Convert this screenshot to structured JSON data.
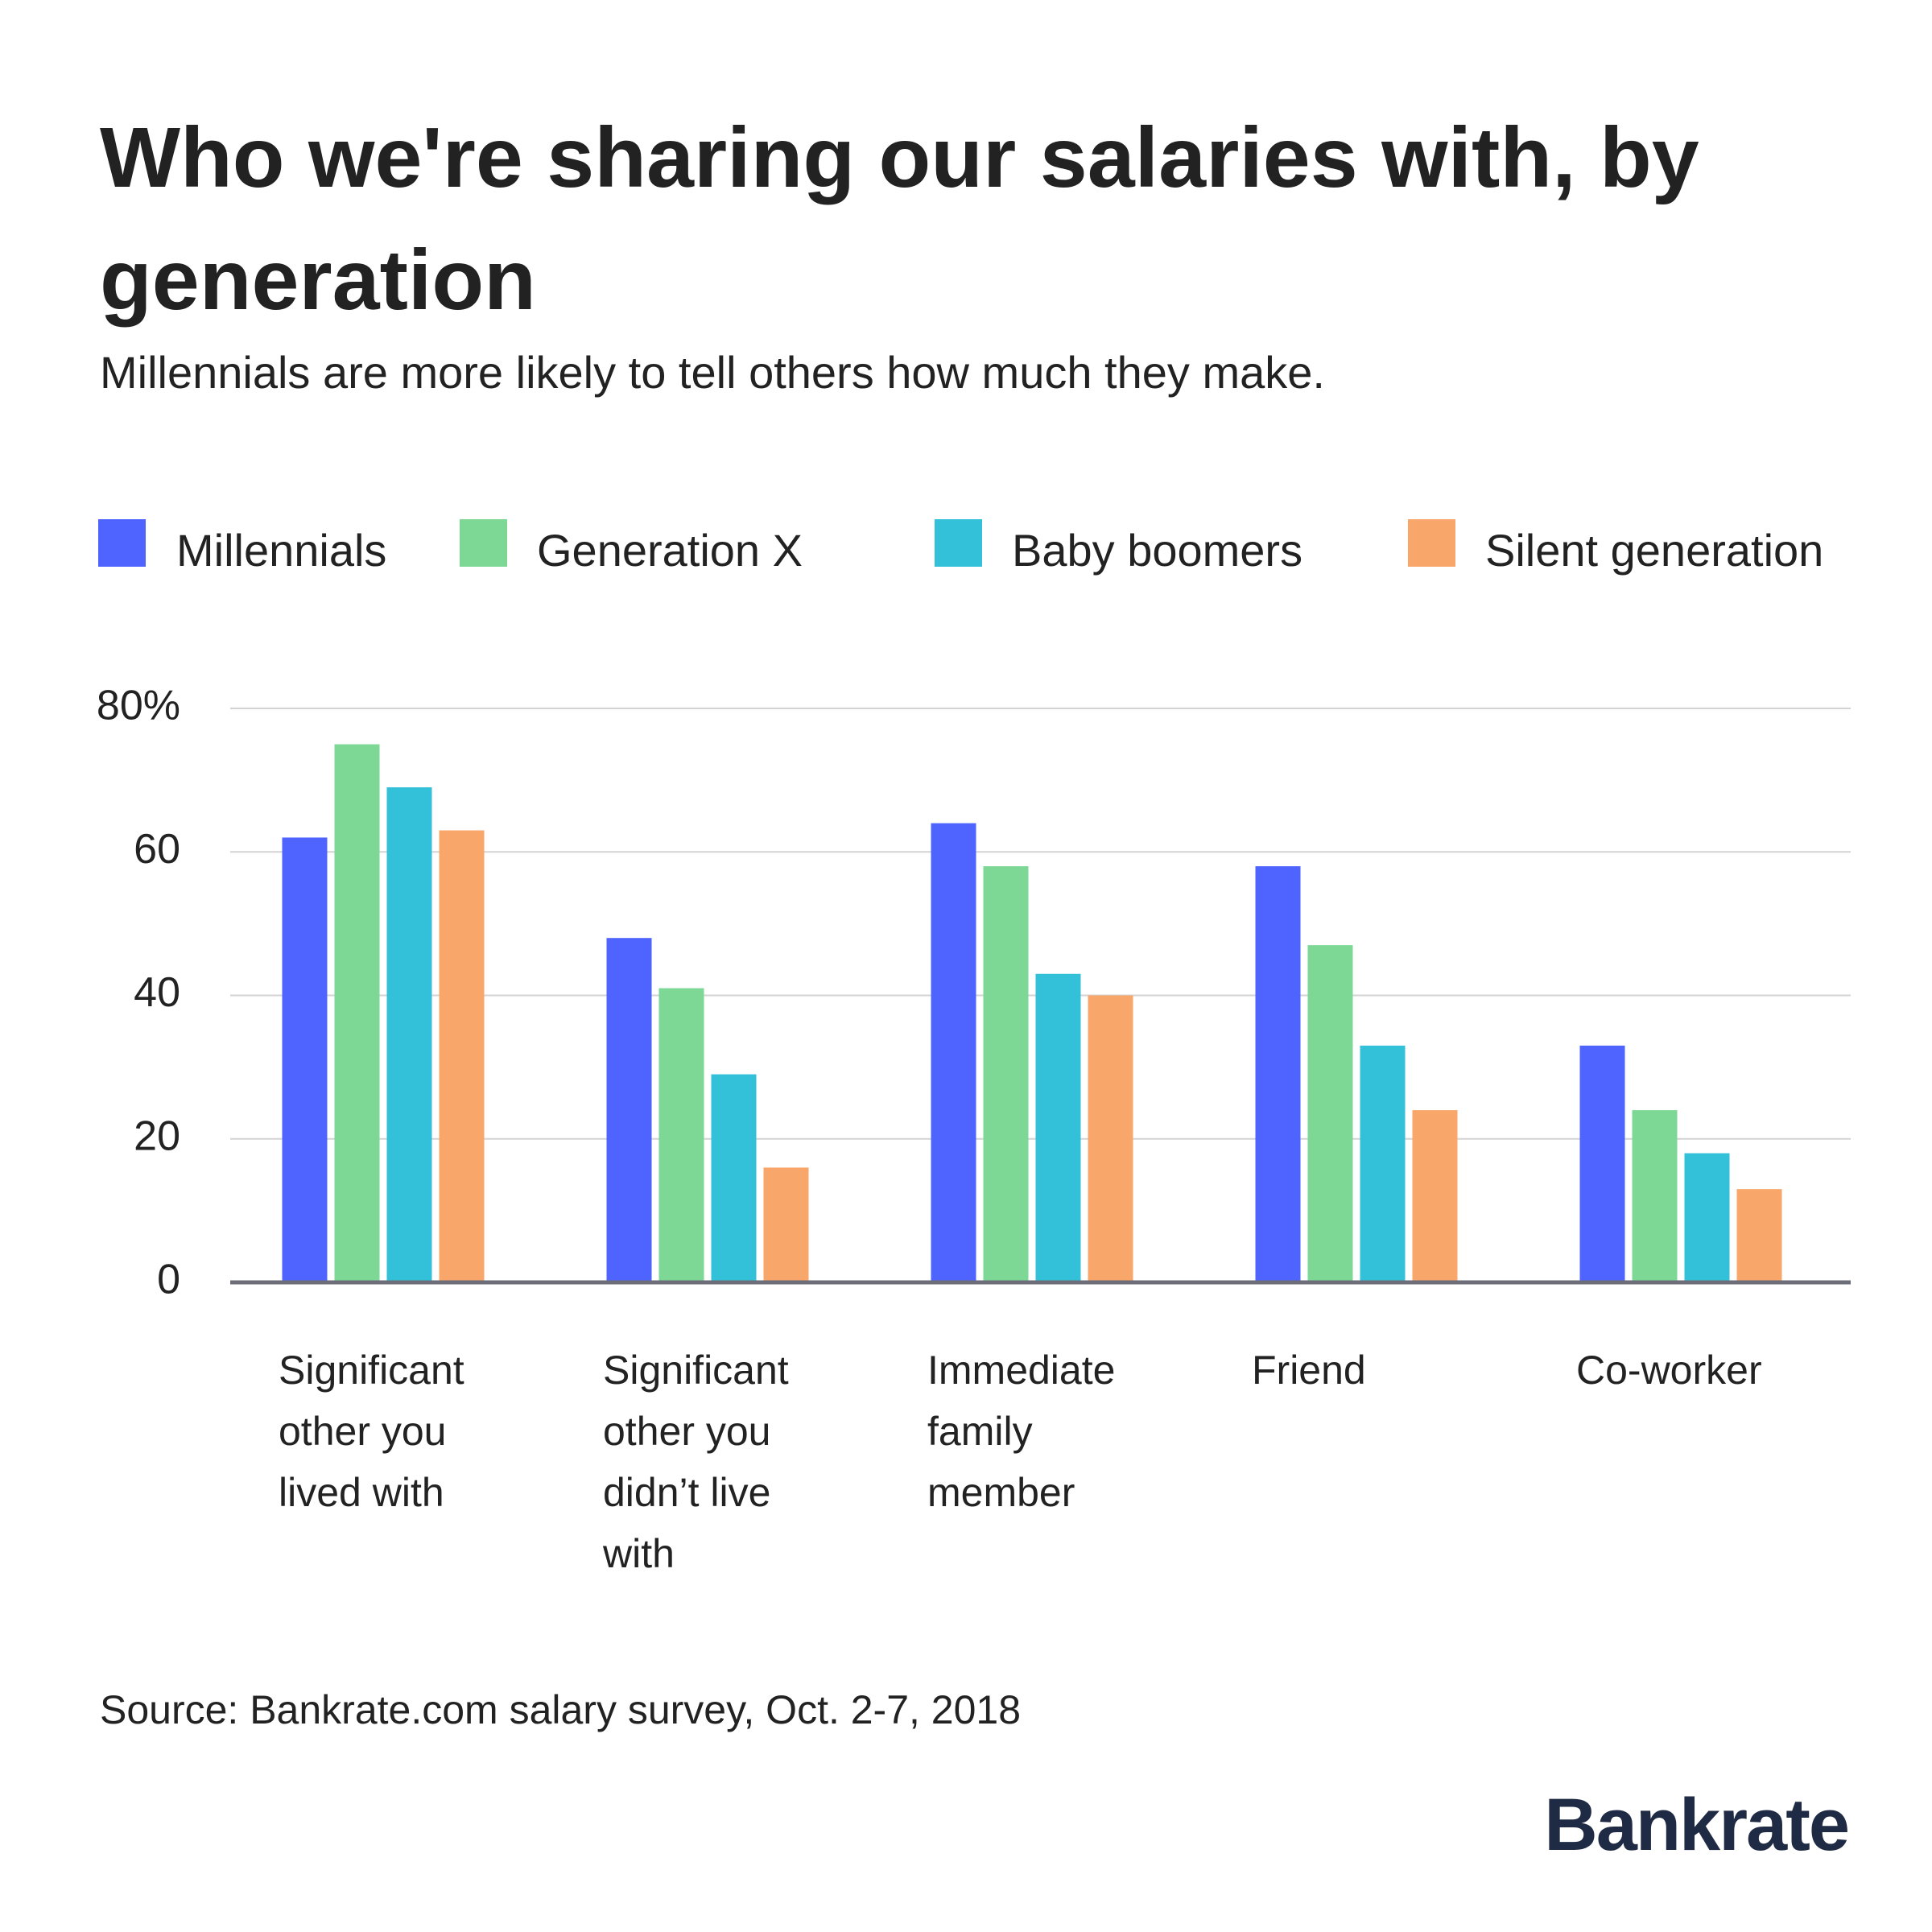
{
  "chart_data": {
    "type": "bar",
    "title": "Who we're sharing our salaries with, by generation",
    "subtitle": "Millennials are more likely to tell others how much they make.",
    "categories": [
      "Significant other you lived with",
      "Significant other you didn’t live with",
      "Immediate family member",
      "Friend",
      "Co-worker"
    ],
    "series": [
      {
        "name": "Millennials",
        "color": "#4f64ff",
        "values": [
          62,
          48,
          64,
          58,
          33
        ]
      },
      {
        "name": "Generation X",
        "color": "#7dd895",
        "values": [
          75,
          41,
          58,
          47,
          24
        ]
      },
      {
        "name": "Baby boomers",
        "color": "#33c1d9",
        "values": [
          69,
          29,
          43,
          33,
          18
        ]
      },
      {
        "name": "Silent generation",
        "color": "#f9a66a",
        "values": [
          63,
          16,
          40,
          24,
          13
        ]
      }
    ],
    "ylim": [
      0,
      80
    ],
    "yticks": [
      0,
      20,
      40,
      60,
      {
        "value": 80,
        "label": "80%"
      }
    ],
    "grid": true,
    "legend": "top",
    "source": "Source: Bankrate.com salary survey, Oct. 2-7, 2018",
    "brand": "Bankrate"
  }
}
